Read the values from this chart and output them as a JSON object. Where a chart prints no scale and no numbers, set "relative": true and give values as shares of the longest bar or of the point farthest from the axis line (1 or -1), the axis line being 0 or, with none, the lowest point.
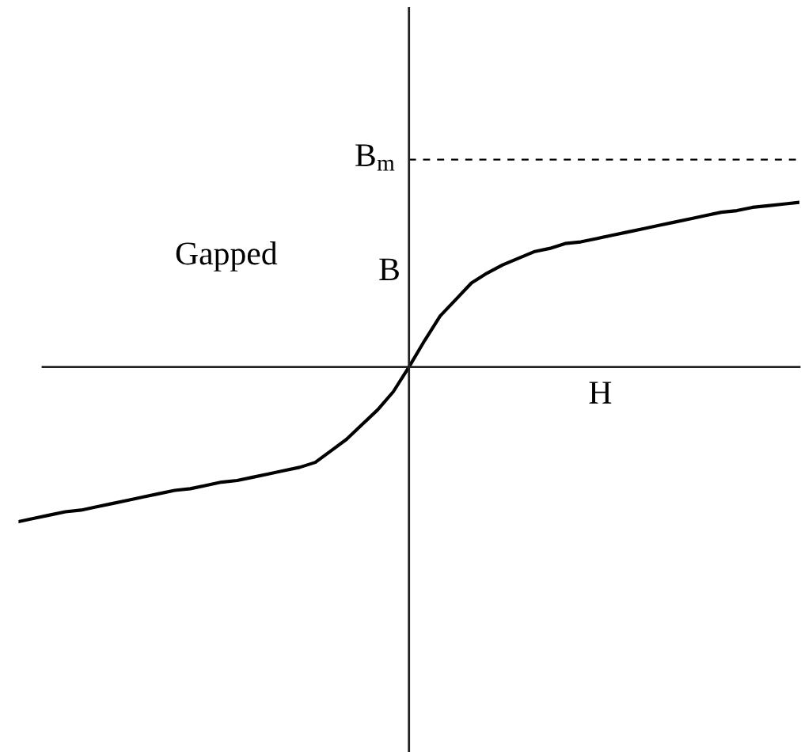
{
  "chart_data": {
    "type": "line",
    "relative": true,
    "xlabel": "H",
    "ylabel": "B",
    "annotations": [
      "Gapped"
    ],
    "categories": [
      null,
      null,
      null,
      null,
      null,
      null,
      null,
      null,
      null,
      null,
      null,
      null,
      null,
      null,
      null,
      null,
      null,
      null,
      null,
      null,
      null,
      null,
      null,
      null,
      null,
      null,
      null,
      null,
      null,
      null,
      null,
      null,
      null,
      null,
      null,
      null,
      null,
      null,
      null,
      null,
      null,
      null,
      null,
      null,
      null,
      null,
      null,
      null,
      null,
      null,
      null
    ],
    "series": [
      {
        "color": "#000000",
        "values": [
          -0.94,
          -0.92,
          -0.9,
          -0.88,
          -0.87,
          -0.85,
          -0.83,
          -0.81,
          -0.79,
          -0.77,
          -0.75,
          -0.74,
          -0.72,
          -0.7,
          -0.69,
          -0.67,
          -0.65,
          -0.63,
          -0.61,
          -0.58,
          -0.51,
          -0.44,
          -0.35,
          -0.26,
          -0.15,
          0,
          0.16,
          0.31,
          0.41,
          0.51,
          0.57,
          0.62,
          0.66,
          0.7,
          0.72,
          0.75,
          0.76,
          0.78,
          0.8,
          0.82,
          0.84,
          0.86,
          0.88,
          0.9,
          0.92,
          0.94,
          0.95,
          0.97,
          0.98,
          0.99,
          1
        ]
      }
    ],
    "ref_lines": [
      {
        "axis": "y",
        "value": 1.26,
        "label": "B$_{m}$",
        "line_style": "dashed",
        "color": "#000000"
      }
    ]
  }
}
